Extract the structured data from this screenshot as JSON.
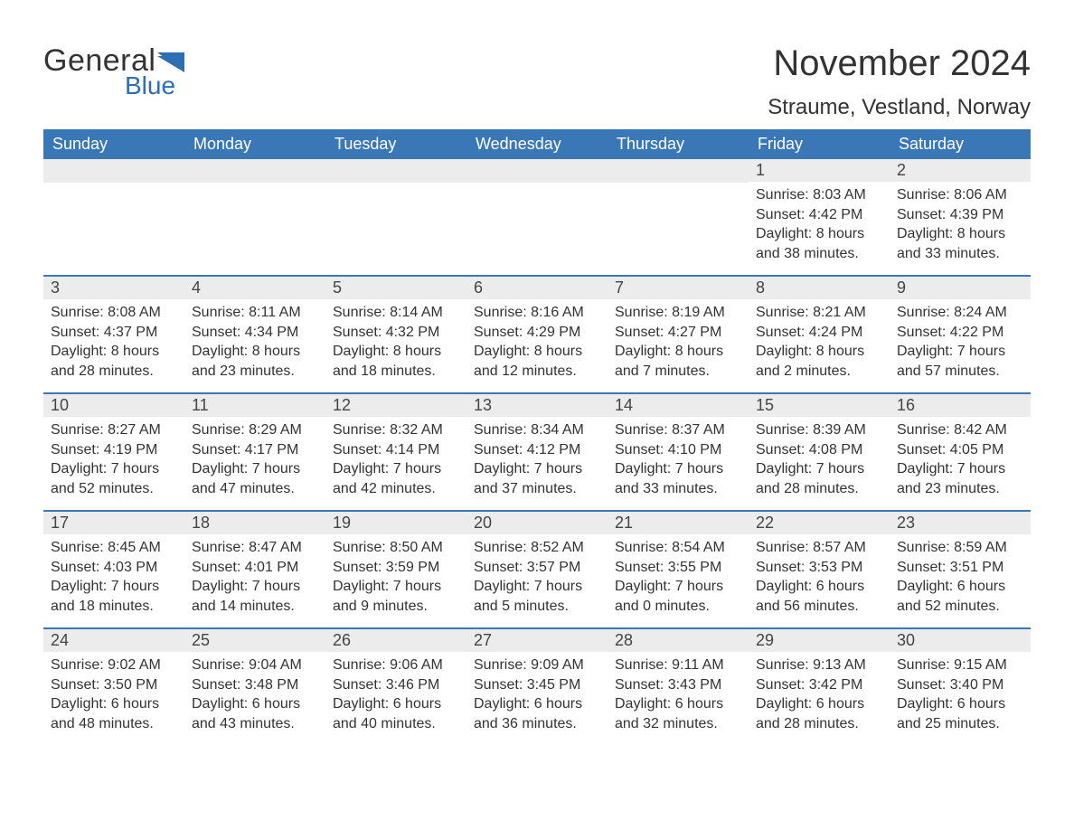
{
  "logo": {
    "text1": "General",
    "text2": "Blue",
    "flag_color": "#2e6eb5",
    "text_color1": "#333333",
    "text_color2": "#2e6eb5"
  },
  "title": "November 2024",
  "location": "Straume, Vestland, Norway",
  "colors": {
    "header_bg": "#3a77b7",
    "header_text": "#ffffff",
    "daynum_bg": "#ececec",
    "body_text": "#333333",
    "border": "#3a77b7",
    "page_bg": "#ffffff"
  },
  "fonts": {
    "title_size": 40,
    "location_size": 24,
    "header_size": 18,
    "daynum_size": 18,
    "detail_size": 16
  },
  "day_headers": [
    "Sunday",
    "Monday",
    "Tuesday",
    "Wednesday",
    "Thursday",
    "Friday",
    "Saturday"
  ],
  "weeks": [
    [
      {
        "day": "",
        "sunrise": "",
        "sunset": "",
        "daylight1": "",
        "daylight2": ""
      },
      {
        "day": "",
        "sunrise": "",
        "sunset": "",
        "daylight1": "",
        "daylight2": ""
      },
      {
        "day": "",
        "sunrise": "",
        "sunset": "",
        "daylight1": "",
        "daylight2": ""
      },
      {
        "day": "",
        "sunrise": "",
        "sunset": "",
        "daylight1": "",
        "daylight2": ""
      },
      {
        "day": "",
        "sunrise": "",
        "sunset": "",
        "daylight1": "",
        "daylight2": ""
      },
      {
        "day": "1",
        "sunrise": "Sunrise: 8:03 AM",
        "sunset": "Sunset: 4:42 PM",
        "daylight1": "Daylight: 8 hours",
        "daylight2": "and 38 minutes."
      },
      {
        "day": "2",
        "sunrise": "Sunrise: 8:06 AM",
        "sunset": "Sunset: 4:39 PM",
        "daylight1": "Daylight: 8 hours",
        "daylight2": "and 33 minutes."
      }
    ],
    [
      {
        "day": "3",
        "sunrise": "Sunrise: 8:08 AM",
        "sunset": "Sunset: 4:37 PM",
        "daylight1": "Daylight: 8 hours",
        "daylight2": "and 28 minutes."
      },
      {
        "day": "4",
        "sunrise": "Sunrise: 8:11 AM",
        "sunset": "Sunset: 4:34 PM",
        "daylight1": "Daylight: 8 hours",
        "daylight2": "and 23 minutes."
      },
      {
        "day": "5",
        "sunrise": "Sunrise: 8:14 AM",
        "sunset": "Sunset: 4:32 PM",
        "daylight1": "Daylight: 8 hours",
        "daylight2": "and 18 minutes."
      },
      {
        "day": "6",
        "sunrise": "Sunrise: 8:16 AM",
        "sunset": "Sunset: 4:29 PM",
        "daylight1": "Daylight: 8 hours",
        "daylight2": "and 12 minutes."
      },
      {
        "day": "7",
        "sunrise": "Sunrise: 8:19 AM",
        "sunset": "Sunset: 4:27 PM",
        "daylight1": "Daylight: 8 hours",
        "daylight2": "and 7 minutes."
      },
      {
        "day": "8",
        "sunrise": "Sunrise: 8:21 AM",
        "sunset": "Sunset: 4:24 PM",
        "daylight1": "Daylight: 8 hours",
        "daylight2": "and 2 minutes."
      },
      {
        "day": "9",
        "sunrise": "Sunrise: 8:24 AM",
        "sunset": "Sunset: 4:22 PM",
        "daylight1": "Daylight: 7 hours",
        "daylight2": "and 57 minutes."
      }
    ],
    [
      {
        "day": "10",
        "sunrise": "Sunrise: 8:27 AM",
        "sunset": "Sunset: 4:19 PM",
        "daylight1": "Daylight: 7 hours",
        "daylight2": "and 52 minutes."
      },
      {
        "day": "11",
        "sunrise": "Sunrise: 8:29 AM",
        "sunset": "Sunset: 4:17 PM",
        "daylight1": "Daylight: 7 hours",
        "daylight2": "and 47 minutes."
      },
      {
        "day": "12",
        "sunrise": "Sunrise: 8:32 AM",
        "sunset": "Sunset: 4:14 PM",
        "daylight1": "Daylight: 7 hours",
        "daylight2": "and 42 minutes."
      },
      {
        "day": "13",
        "sunrise": "Sunrise: 8:34 AM",
        "sunset": "Sunset: 4:12 PM",
        "daylight1": "Daylight: 7 hours",
        "daylight2": "and 37 minutes."
      },
      {
        "day": "14",
        "sunrise": "Sunrise: 8:37 AM",
        "sunset": "Sunset: 4:10 PM",
        "daylight1": "Daylight: 7 hours",
        "daylight2": "and 33 minutes."
      },
      {
        "day": "15",
        "sunrise": "Sunrise: 8:39 AM",
        "sunset": "Sunset: 4:08 PM",
        "daylight1": "Daylight: 7 hours",
        "daylight2": "and 28 minutes."
      },
      {
        "day": "16",
        "sunrise": "Sunrise: 8:42 AM",
        "sunset": "Sunset: 4:05 PM",
        "daylight1": "Daylight: 7 hours",
        "daylight2": "and 23 minutes."
      }
    ],
    [
      {
        "day": "17",
        "sunrise": "Sunrise: 8:45 AM",
        "sunset": "Sunset: 4:03 PM",
        "daylight1": "Daylight: 7 hours",
        "daylight2": "and 18 minutes."
      },
      {
        "day": "18",
        "sunrise": "Sunrise: 8:47 AM",
        "sunset": "Sunset: 4:01 PM",
        "daylight1": "Daylight: 7 hours",
        "daylight2": "and 14 minutes."
      },
      {
        "day": "19",
        "sunrise": "Sunrise: 8:50 AM",
        "sunset": "Sunset: 3:59 PM",
        "daylight1": "Daylight: 7 hours",
        "daylight2": "and 9 minutes."
      },
      {
        "day": "20",
        "sunrise": "Sunrise: 8:52 AM",
        "sunset": "Sunset: 3:57 PM",
        "daylight1": "Daylight: 7 hours",
        "daylight2": "and 5 minutes."
      },
      {
        "day": "21",
        "sunrise": "Sunrise: 8:54 AM",
        "sunset": "Sunset: 3:55 PM",
        "daylight1": "Daylight: 7 hours",
        "daylight2": "and 0 minutes."
      },
      {
        "day": "22",
        "sunrise": "Sunrise: 8:57 AM",
        "sunset": "Sunset: 3:53 PM",
        "daylight1": "Daylight: 6 hours",
        "daylight2": "and 56 minutes."
      },
      {
        "day": "23",
        "sunrise": "Sunrise: 8:59 AM",
        "sunset": "Sunset: 3:51 PM",
        "daylight1": "Daylight: 6 hours",
        "daylight2": "and 52 minutes."
      }
    ],
    [
      {
        "day": "24",
        "sunrise": "Sunrise: 9:02 AM",
        "sunset": "Sunset: 3:50 PM",
        "daylight1": "Daylight: 6 hours",
        "daylight2": "and 48 minutes."
      },
      {
        "day": "25",
        "sunrise": "Sunrise: 9:04 AM",
        "sunset": "Sunset: 3:48 PM",
        "daylight1": "Daylight: 6 hours",
        "daylight2": "and 43 minutes."
      },
      {
        "day": "26",
        "sunrise": "Sunrise: 9:06 AM",
        "sunset": "Sunset: 3:46 PM",
        "daylight1": "Daylight: 6 hours",
        "daylight2": "and 40 minutes."
      },
      {
        "day": "27",
        "sunrise": "Sunrise: 9:09 AM",
        "sunset": "Sunset: 3:45 PM",
        "daylight1": "Daylight: 6 hours",
        "daylight2": "and 36 minutes."
      },
      {
        "day": "28",
        "sunrise": "Sunrise: 9:11 AM",
        "sunset": "Sunset: 3:43 PM",
        "daylight1": "Daylight: 6 hours",
        "daylight2": "and 32 minutes."
      },
      {
        "day": "29",
        "sunrise": "Sunrise: 9:13 AM",
        "sunset": "Sunset: 3:42 PM",
        "daylight1": "Daylight: 6 hours",
        "daylight2": "and 28 minutes."
      },
      {
        "day": "30",
        "sunrise": "Sunrise: 9:15 AM",
        "sunset": "Sunset: 3:40 PM",
        "daylight1": "Daylight: 6 hours",
        "daylight2": "and 25 minutes."
      }
    ]
  ]
}
